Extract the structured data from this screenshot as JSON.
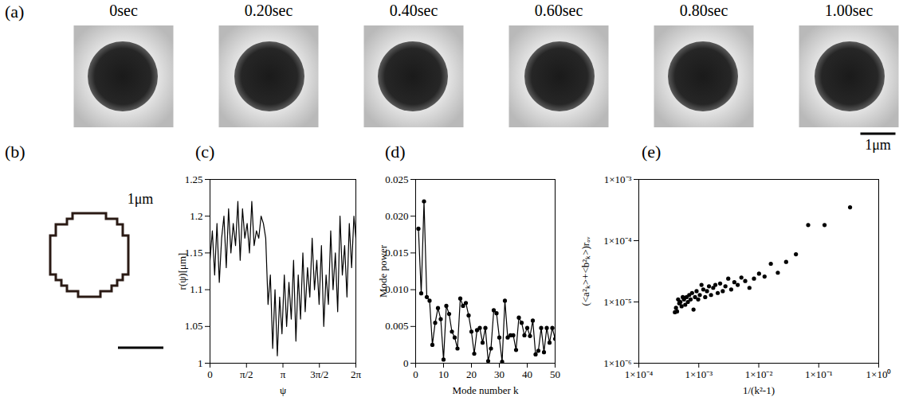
{
  "panel_a": {
    "panel_label": "(a)",
    "frame_titles": [
      "0sec",
      "0.20sec",
      "0.40sec",
      "0.60sec",
      "0.80sec",
      "1.00sec"
    ],
    "scale_bar": "1μm"
  },
  "panel_b": {
    "panel_label": "(b)",
    "scale_bar": "1μm"
  },
  "chart_data": [
    {
      "panel_label": "(c)",
      "type": "line",
      "color": "#000000",
      "x_label": "ψ",
      "y_label": "r(ψ)[μm]",
      "x": [
        0,
        0.1,
        0.2,
        0.3,
        0.4,
        0.5,
        0.6,
        0.7,
        0.8,
        0.9,
        1.0,
        1.1,
        1.2,
        1.3,
        1.4,
        1.5,
        1.6,
        1.7,
        1.8,
        1.9,
        2.0,
        2.1,
        2.2,
        2.3,
        2.4,
        2.5,
        2.6,
        2.7,
        2.8,
        2.9,
        3.0,
        3.1,
        3.2,
        3.3,
        3.4,
        3.5,
        3.6,
        3.7,
        3.8,
        3.9,
        4.0,
        4.1,
        4.2,
        4.3,
        4.4,
        4.5,
        4.6,
        4.7,
        4.8,
        4.9,
        5.0,
        5.1,
        5.2,
        5.3,
        5.4,
        5.5,
        5.6,
        5.7,
        5.8,
        5.9,
        6.0,
        6.1,
        6.2,
        6.283
      ],
      "values": [
        1.14,
        1.18,
        1.12,
        1.19,
        1.11,
        1.17,
        1.2,
        1.13,
        1.21,
        1.15,
        1.19,
        1.16,
        1.22,
        1.14,
        1.21,
        1.17,
        1.19,
        1.15,
        1.22,
        1.16,
        1.18,
        1.17,
        1.2,
        1.19,
        1.17,
        1.08,
        1.12,
        1.02,
        1.1,
        1.01,
        1.09,
        1.04,
        1.12,
        1.05,
        1.11,
        1.06,
        1.14,
        1.03,
        1.12,
        1.06,
        1.15,
        1.07,
        1.13,
        1.09,
        1.17,
        1.1,
        1.14,
        1.08,
        1.16,
        1.05,
        1.12,
        1.08,
        1.18,
        1.1,
        1.15,
        1.07,
        1.2,
        1.12,
        1.16,
        1.09,
        1.19,
        1.13,
        1.2,
        1.17
      ],
      "xlim": [
        0,
        6.283
      ],
      "xticks": [
        {
          "value": 0,
          "label": "0"
        },
        {
          "value": 1.5708,
          "label": "π/2"
        },
        {
          "value": 3.1416,
          "label": "π"
        },
        {
          "value": 4.7124,
          "label": "3π/2"
        },
        {
          "value": 6.283,
          "label": "2π"
        }
      ],
      "ylim": [
        1,
        1.25
      ],
      "yticks": [
        1,
        1.05,
        1.1,
        1.15,
        1.2,
        1.25
      ]
    },
    {
      "panel_label": "(d)",
      "type": "line",
      "marker": "dot",
      "color": "#000000",
      "x_label": "Mode number k",
      "y_label": "Mode power",
      "x": [
        1,
        2,
        3,
        4,
        5,
        6,
        7,
        8,
        9,
        10,
        11,
        12,
        13,
        14,
        15,
        16,
        17,
        18,
        19,
        20,
        21,
        22,
        23,
        24,
        25,
        26,
        27,
        28,
        29,
        30,
        31,
        32,
        33,
        34,
        35,
        36,
        37,
        38,
        39,
        40,
        41,
        42,
        43,
        44,
        45,
        46,
        47,
        48,
        49,
        50
      ],
      "values": [
        0.0183,
        0.0095,
        0.022,
        0.009,
        0.0085,
        0.0025,
        0.0055,
        0.0075,
        0.006,
        0.0005,
        0.0078,
        0.0067,
        0.0043,
        0.0035,
        0.002,
        0.0088,
        0.0078,
        0.0082,
        0.0065,
        0.0043,
        0.0013,
        0.0045,
        0.0048,
        0.0028,
        0.0048,
        0.0003,
        0.002,
        0.0072,
        0.0068,
        0.0035,
        0.0002,
        0.0085,
        0.0035,
        0.0038,
        0.0038,
        0.0018,
        0.0062,
        0.0055,
        0.0038,
        0.0048,
        0.0037,
        0.0058,
        0.0012,
        0.0017,
        0.0048,
        0.0015,
        0.0048,
        0.0028,
        0.0048,
        0.0033
      ],
      "xlim": [
        0,
        50
      ],
      "xticks": [
        0,
        10,
        20,
        30,
        40,
        50
      ],
      "ylim": [
        0,
        0.025
      ],
      "yticks": [
        0,
        0.005,
        {
          "value": 0.01,
          "label": "0.010"
        },
        0.015,
        {
          "value": 0.02,
          "label": "0.020"
        },
        0.025
      ]
    },
    {
      "panel_label": "(e)",
      "type": "scatter",
      "marker": "dot",
      "color": "#000000",
      "log": true,
      "x_label": "1/(k²-1)",
      "y_label": "(<a²ₖ>+<b²ₖ>)rₐᵥ",
      "x": [
        0.333,
        0.125,
        0.0667,
        0.0417,
        0.0286,
        0.0208,
        0.0159,
        0.0125,
        0.0101,
        0.00833,
        0.00699,
        0.00595,
        0.00513,
        0.00446,
        0.00392,
        0.00347,
        0.0031,
        0.00278,
        0.00251,
        0.00227,
        0.00207,
        0.00189,
        0.00174,
        0.0016,
        0.00148,
        0.00137,
        0.00128,
        0.00119,
        0.00111,
        0.00104,
        0.000978,
        0.000919,
        0.000866,
        0.000817,
        0.000772,
        0.000731,
        0.000693,
        0.000658,
        0.000626,
        0.000595,
        0.000567,
        0.000541,
        0.000517,
        0.000494,
        0.000473,
        0.000453,
        0.000434,
        0.000417,
        0.0004
      ],
      "values": [
        0.00035,
        0.00018,
        0.00018,
        6e-05,
        4.5e-05,
        3e-05,
        4.2e-05,
        2.6e-05,
        2.9e-05,
        2.4e-05,
        1.7e-05,
        2.2e-05,
        2.5e-05,
        1.9e-05,
        2.1e-05,
        1.6e-05,
        2.4e-05,
        1.8e-05,
        1.5e-05,
        2e-05,
        1.4e-05,
        1.9e-05,
        1.7e-05,
        1.3e-05,
        1.8e-05,
        1.5e-05,
        1.2e-05,
        1.6e-05,
        1.9e-05,
        1.3e-05,
        1.1e-05,
        1.5e-05,
        1.2e-05,
        7.5e-06,
        1.4e-05,
        1.1e-05,
        1.3e-05,
        1e-05,
        1.2e-05,
        9e-06,
        1.1e-05,
        1.2e-05,
        8.5e-06,
        1e-05,
        9.5e-06,
        1.1e-05,
        7e-06,
        8e-06,
        6.8e-06
      ],
      "xlim": [
        0.0001,
        1
      ],
      "xticks": [
        {
          "value": 0.0001,
          "label": "1×10⁻⁴"
        },
        {
          "value": 0.001,
          "label": "1×10⁻³"
        },
        {
          "value": 0.01,
          "label": "1×10⁻²"
        },
        {
          "value": 0.1,
          "label": "1×10⁻¹"
        },
        {
          "value": 1,
          "label": "1×10⁰"
        }
      ],
      "ylim": [
        1e-06,
        0.001
      ],
      "yticks": [
        {
          "value": 1e-06,
          "label": "1×10⁻⁶"
        },
        {
          "value": 1e-05,
          "label": "1×10⁻⁵"
        },
        {
          "value": 0.0001,
          "label": "1×10⁻⁴"
        },
        {
          "value": 0.001,
          "label": "1×10⁻³"
        }
      ]
    }
  ]
}
